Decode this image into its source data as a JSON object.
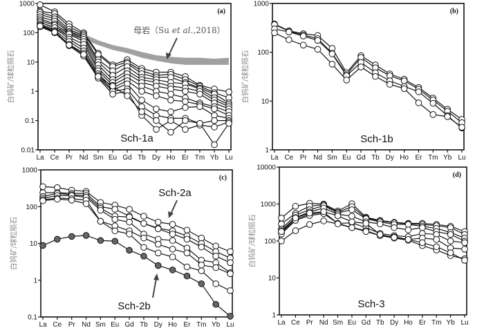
{
  "chart_data": [
    {
      "type": "line",
      "panel_label": "(a)",
      "title": "Sch-1a",
      "xlabel": "",
      "ylabel": "白钨矿/球粒陨石",
      "yscale": "log",
      "ylim": [
        0.01,
        1000
      ],
      "yticks": [
        "0.01",
        "0.1",
        "1",
        "10",
        "100",
        "1000"
      ],
      "categories": [
        "La",
        "Ce",
        "Pr",
        "Nd",
        "Sm",
        "Eu",
        "Gd",
        "Tb",
        "Dy",
        "Ho",
        "Er",
        "Tm",
        "Yb",
        "Lu"
      ],
      "band": {
        "label": "母岩（Su et al.,2018）",
        "label_parts": [
          "母岩（Su ",
          "et al.",
          ",2018）"
        ],
        "color": "#a0a0a0",
        "lower": [
          150,
          110,
          80,
          60,
          38,
          26,
          20,
          14,
          11,
          9,
          8,
          8,
          8,
          8
        ],
        "upper": [
          200,
          150,
          120,
          90,
          55,
          38,
          30,
          22,
          17,
          15,
          14,
          14,
          13,
          14
        ]
      },
      "marker": "open",
      "series": [
        {
          "name": "s1",
          "values": [
            900,
            520,
            200,
            100,
            20,
            8,
            12,
            6,
            4.5,
            4.5,
            3.2,
            1.6,
            1.2,
            0.95
          ]
        },
        {
          "name": "s2",
          "values": [
            550,
            450,
            160,
            90,
            18,
            7,
            10,
            5,
            3.5,
            3.8,
            2.5,
            1.5,
            0.9,
            0.6
          ]
        },
        {
          "name": "s3",
          "values": [
            500,
            350,
            130,
            80,
            12,
            5,
            9,
            4,
            3,
            3,
            2,
            1.3,
            0.8,
            0.4
          ]
        },
        {
          "name": "s4",
          "values": [
            420,
            300,
            110,
            70,
            10,
            3.5,
            7,
            3,
            2.5,
            2,
            1.8,
            1.2,
            0.6,
            0.35
          ]
        },
        {
          "name": "s5",
          "values": [
            350,
            250,
            100,
            60,
            8,
            2.5,
            5,
            2.5,
            2,
            1.5,
            1.3,
            1,
            0.5,
            0.3
          ]
        },
        {
          "name": "s6",
          "values": [
            300,
            200,
            90,
            50,
            6,
            2,
            4,
            2,
            1.5,
            1.2,
            1,
            0.8,
            0.4,
            0.25
          ]
        },
        {
          "name": "s7",
          "values": [
            260,
            180,
            70,
            40,
            5,
            1.6,
            3,
            1.5,
            1,
            0.8,
            0.6,
            0.4,
            0.3,
            0.2
          ]
        },
        {
          "name": "s8",
          "values": [
            230,
            150,
            60,
            30,
            4,
            1.3,
            2.3,
            1,
            0.7,
            0.5,
            0.45,
            0.35,
            0.25,
            0.15
          ]
        },
        {
          "name": "s9",
          "values": [
            200,
            120,
            50,
            24,
            3.5,
            1.1,
            1.8,
            0.5,
            0.25,
            0.2,
            0.28,
            0.3,
            0.15,
            0.12
          ]
        },
        {
          "name": "s10",
          "values": [
            180,
            110,
            40,
            20,
            3,
            1,
            1.2,
            0.3,
            0.15,
            0.12,
            0.12,
            0.08,
            0.1,
            0.1
          ]
        },
        {
          "name": "s11",
          "values": [
            160,
            100,
            36,
            16,
            2.8,
            0.8,
            1,
            0.15,
            0.05,
            0.1,
            0.05,
            0.07,
            0.06,
            0.09
          ]
        },
        {
          "name": "s12",
          "values": [
            170,
            105,
            38,
            18,
            3.2,
            1.5,
            0.7,
            0.2,
            0.1,
            0.04,
            0.1,
            0.08,
            0.015,
            0.08
          ]
        }
      ]
    },
    {
      "type": "line",
      "panel_label": "(b)",
      "title": "Sch-1b",
      "xlabel": "",
      "ylabel": "白钨矿/球粒陨石",
      "yscale": "log",
      "ylim": [
        1,
        1000
      ],
      "yticks": [
        "1",
        "10",
        "100",
        "1000"
      ],
      "categories": [
        "La",
        "Ce",
        "Pr",
        "Nd",
        "Sm",
        "Eu",
        "Gd",
        "Tb",
        "Dy",
        "Ho",
        "Er",
        "Tm",
        "Yb",
        "Lu"
      ],
      "marker": "open",
      "series": [
        {
          "name": "s1",
          "values": [
            380,
            275,
            240,
            220,
            120,
            38,
            85,
            55,
            36,
            28,
            19,
            11.5,
            6.8,
            4.2
          ]
        },
        {
          "name": "s2",
          "values": [
            370,
            270,
            225,
            190,
            95,
            35,
            78,
            48,
            33,
            26,
            17.5,
            10.5,
            6.2,
            3.6
          ]
        },
        {
          "name": "s3",
          "values": [
            300,
            260,
            215,
            175,
            93,
            33,
            62,
            38,
            26,
            20,
            15.5,
            9,
            5,
            2.8
          ]
        },
        {
          "name": "s4",
          "values": [
            250,
            180,
            140,
            115,
            57,
            27,
            50,
            32,
            22,
            18,
            9.2,
            5.3,
            4.8,
            2.9
          ]
        }
      ]
    },
    {
      "type": "line",
      "panel_label": "(c)",
      "title": "",
      "xlabel": "",
      "ylabel": "白钨矿/球粒陨石",
      "yscale": "log",
      "ylim": [
        0.1,
        1000
      ],
      "yticks": [
        "0.1",
        "1",
        "10",
        "100",
        "1000"
      ],
      "categories": [
        "La",
        "Ce",
        "Pr",
        "Nd",
        "Sm",
        "Eu",
        "Gd",
        "Tb",
        "Dy",
        "Ho",
        "Er",
        "Tm",
        "Yb",
        "Lu"
      ],
      "annotations": [
        {
          "text": "Sch-2a",
          "points_to": "open-circle series"
        },
        {
          "text": "Sch-2b",
          "points_to": "filled-circle series"
        }
      ],
      "series": [
        {
          "name": "Sch-2a-1",
          "group": "Sch-2a",
          "marker": "open",
          "values": [
            350,
            330,
            280,
            260,
            130,
            110,
            85,
            55,
            38,
            33,
            23,
            14,
            8.5,
            6
          ]
        },
        {
          "name": "Sch-2a-2",
          "group": "Sch-2a",
          "marker": "open",
          "values": [
            240,
            240,
            230,
            230,
            100,
            85,
            55,
            35,
            26,
            22,
            16,
            10,
            6,
            4
          ]
        },
        {
          "name": "Sch-2a-3",
          "group": "Sch-2a",
          "marker": "open",
          "values": [
            190,
            230,
            210,
            200,
            90,
            55,
            52,
            35,
            25,
            18,
            13,
            8,
            4.5,
            3
          ]
        },
        {
          "name": "Sch-2a-4",
          "group": "Sch-2a",
          "marker": "open",
          "values": [
            170,
            200,
            200,
            180,
            80,
            45,
            38,
            18,
            13,
            12,
            7.5,
            3.5,
            3,
            1.6
          ]
        },
        {
          "name": "Sch-2a-5",
          "group": "Sch-2a",
          "marker": "open",
          "values": [
            155,
            170,
            165,
            150,
            40,
            30,
            22,
            14,
            9.5,
            7,
            5.5,
            2.6,
            2.2,
            1.5
          ]
        },
        {
          "name": "Sch-2a-6",
          "group": "Sch-2a",
          "marker": "open",
          "values": [
            145,
            160,
            150,
            120,
            40,
            22,
            18,
            7.8,
            5.5,
            4.3,
            2.3,
            1.8,
            0.8,
            0.52
          ]
        },
        {
          "name": "Sch-2b",
          "group": "Sch-2b",
          "marker": "filled",
          "color": "#666666",
          "values": [
            8.8,
            13,
            15.5,
            16.5,
            12,
            11.5,
            6.5,
            4.5,
            2.5,
            1.9,
            1.3,
            0.8,
            0.22,
            0.105
          ]
        }
      ]
    },
    {
      "type": "line",
      "panel_label": "(d)",
      "title": "Sch-3",
      "xlabel": "",
      "ylabel": "白钨矿/球粒陨石",
      "yscale": "log",
      "ylim": [
        1,
        10000
      ],
      "yticks": [
        "1",
        "10",
        "100",
        "1000",
        "10000"
      ],
      "categories": [
        "La",
        "Ce",
        "Pr",
        "Nd",
        "Sm",
        "Eu",
        "Gd",
        "Tb",
        "Dy",
        "Ho",
        "Er",
        "Tm",
        "Yb",
        "Lu"
      ],
      "marker": "open",
      "series": [
        {
          "name": "s1",
          "values": [
            420,
            870,
            1050,
            1000,
            650,
            1020,
            440,
            360,
            320,
            300,
            300,
            280,
            250,
            180
          ]
        },
        {
          "name": "s2",
          "values": [
            290,
            560,
            880,
            960,
            600,
            850,
            420,
            350,
            310,
            290,
            280,
            260,
            230,
            150
          ]
        },
        {
          "name": "s3",
          "values": [
            210,
            500,
            700,
            900,
            580,
            700,
            400,
            330,
            280,
            280,
            250,
            220,
            170,
            120
          ]
        },
        {
          "name": "s4",
          "values": [
            190,
            430,
            610,
            780,
            530,
            470,
            330,
            290,
            230,
            200,
            230,
            180,
            150,
            100
          ]
        },
        {
          "name": "s5",
          "values": [
            170,
            380,
            530,
            600,
            300,
            310,
            230,
            160,
            140,
            130,
            160,
            150,
            100,
            90
          ]
        },
        {
          "name": "s6",
          "values": [
            155,
            360,
            490,
            550,
            300,
            230,
            190,
            140,
            130,
            110,
            120,
            110,
            65,
            60
          ]
        },
        {
          "name": "s7",
          "values": [
            100,
            190,
            280,
            350,
            290,
            230,
            180,
            140,
            120,
            105,
            75,
            57,
            40,
            33
          ]
        },
        {
          "name": "s8",
          "values": [
            180,
            420,
            570,
            620,
            480,
            330,
            300,
            150,
            125,
            110,
            90,
            70,
            48,
            30
          ]
        }
      ]
    }
  ]
}
